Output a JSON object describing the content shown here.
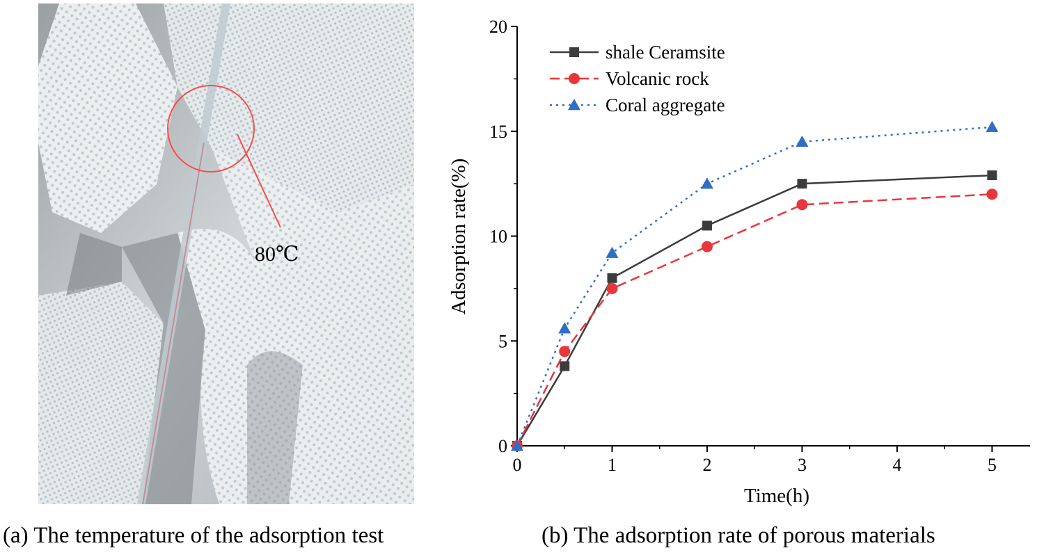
{
  "photo": {
    "annotation_label": "80℃",
    "colors": {
      "mesh": "#e9eef0",
      "shadow": "#8f9598",
      "highlight": "#ff3b3b",
      "thermometer": "#b8c6cc"
    }
  },
  "captions": {
    "a": "(a) The temperature of the adsorption test",
    "b": "(b) The adsorption rate of porous materials"
  },
  "chart_data": {
    "type": "line",
    "title": "",
    "xlabel": "Time(h)",
    "ylabel": "Adsorption rate(%)",
    "xlim": [
      0,
      5.4
    ],
    "ylim": [
      0,
      20
    ],
    "xticks": [
      0,
      1,
      2,
      3,
      4,
      5
    ],
    "yticks": [
      0,
      5,
      10,
      15,
      20
    ],
    "grid": false,
    "legend_position": "top-left",
    "series": [
      {
        "name": "shale Ceramsite",
        "color": "#3c3c3c",
        "marker": "square",
        "dash": "solid",
        "x": [
          0,
          0.5,
          1,
          2,
          3,
          5
        ],
        "y": [
          0,
          3.8,
          8.0,
          10.5,
          12.5,
          12.9
        ]
      },
      {
        "name": "Volcanic rock",
        "color": "#e8363c",
        "marker": "circle",
        "dash": "dashed",
        "x": [
          0,
          0.5,
          1,
          2,
          3,
          5
        ],
        "y": [
          0,
          4.5,
          7.5,
          9.5,
          11.5,
          12.0
        ]
      },
      {
        "name": "Coral aggregate",
        "color": "#2f6ec4",
        "marker": "triangle",
        "dash": "dotted",
        "x": [
          0,
          0.5,
          1,
          2,
          3,
          5
        ],
        "y": [
          0,
          5.6,
          9.2,
          12.5,
          14.5,
          15.2
        ]
      }
    ]
  }
}
